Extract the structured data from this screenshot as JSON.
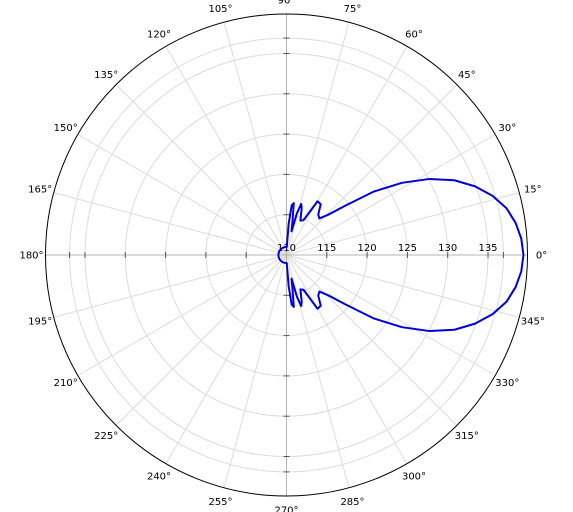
{
  "chart_data": {
    "type": "line",
    "coordinate_system": "polar",
    "title": "",
    "angle_unit": "deg",
    "angle_ticks": [
      {
        "value": 0,
        "label": "0°"
      },
      {
        "value": 15,
        "label": "15°"
      },
      {
        "value": 30,
        "label": "30°"
      },
      {
        "value": 45,
        "label": "45°"
      },
      {
        "value": 60,
        "label": "60°"
      },
      {
        "value": 75,
        "label": "75°"
      },
      {
        "value": 90,
        "label": "90°"
      },
      {
        "value": 105,
        "label": "105°"
      },
      {
        "value": 120,
        "label": "120°"
      },
      {
        "value": 135,
        "label": "135°"
      },
      {
        "value": 150,
        "label": "150°"
      },
      {
        "value": 165,
        "label": "165°"
      },
      {
        "value": 180,
        "label": "180°"
      },
      {
        "value": 195,
        "label": "195°"
      },
      {
        "value": 210,
        "label": "210°"
      },
      {
        "value": 225,
        "label": "225°"
      },
      {
        "value": 240,
        "label": "240°"
      },
      {
        "value": 255,
        "label": "255°"
      },
      {
        "value": 270,
        "label": "270°"
      },
      {
        "value": 285,
        "label": "285°"
      },
      {
        "value": 300,
        "label": "300°"
      },
      {
        "value": 315,
        "label": "315°"
      },
      {
        "value": 330,
        "label": "330°"
      },
      {
        "value": 345,
        "label": "345°"
      }
    ],
    "radial_ticks": [
      {
        "value": 110,
        "label": "110"
      },
      {
        "value": 115,
        "label": "115"
      },
      {
        "value": 120,
        "label": "120"
      },
      {
        "value": 125,
        "label": "125"
      },
      {
        "value": 130,
        "label": "130"
      },
      {
        "value": 135,
        "label": "135"
      }
    ],
    "r_range": [
      110,
      139.9
    ],
    "grid": true,
    "series": [
      {
        "color": "#0000dd",
        "theta": [
          0,
          4,
          8,
          12,
          16,
          20,
          24,
          28,
          32,
          36,
          40,
          44,
          48,
          52,
          56,
          60,
          64,
          68,
          72,
          74,
          76,
          78,
          80,
          82,
          84,
          86,
          88,
          90,
          92,
          94,
          96,
          98,
          100,
          102,
          104,
          106,
          108,
          110,
          112,
          114,
          116,
          118,
          120,
          124,
          128,
          132,
          136,
          140,
          144,
          148,
          152,
          156,
          160,
          164,
          168,
          172,
          176,
          180,
          184,
          188,
          192,
          196,
          200,
          204,
          208,
          212,
          216,
          220,
          224,
          228,
          232,
          236,
          240,
          242,
          244,
          246,
          248,
          250,
          252,
          254,
          256,
          258,
          260,
          262,
          264,
          266,
          268,
          270,
          272,
          274,
          276,
          278,
          280,
          282,
          284,
          286,
          288,
          292,
          296,
          300,
          304,
          308,
          312,
          316,
          320,
          324,
          328,
          332,
          336,
          340,
          344,
          348,
          352,
          356,
          360
        ],
        "r": [
          139.4,
          139.2,
          138.7,
          137.9,
          136.6,
          134.9,
          132.8,
          130.1,
          126.9,
          123.4,
          119.5,
          117.2,
          116.1,
          116.4,
          117.6,
          117.7,
          114.8,
          114.6,
          116.1,
          116.6,
          115.3,
          113.0,
          114.3,
          116.5,
          116.2,
          113.9,
          111.0,
          111.0,
          111.0,
          111.0,
          111.0,
          111.0,
          111.0,
          111.0,
          111.0,
          111.0,
          111.0,
          111.0,
          111.0,
          111.0,
          111.0,
          111.0,
          111.0,
          111.0,
          111.0,
          111.0,
          111.0,
          111.0,
          111.0,
          111.0,
          111.0,
          111.0,
          111.0,
          111.0,
          111.0,
          111.0,
          111.0,
          111.0,
          111.0,
          111.0,
          111.0,
          111.0,
          111.0,
          111.0,
          111.0,
          111.0,
          111.0,
          111.0,
          111.0,
          111.0,
          111.0,
          111.0,
          111.0,
          111.0,
          111.0,
          111.0,
          111.0,
          111.0,
          111.0,
          111.0,
          111.0,
          111.0,
          111.0,
          111.0,
          111.0,
          111.0,
          111.0,
          111.0,
          111.0,
          113.9,
          116.2,
          116.5,
          114.3,
          113.0,
          115.3,
          116.6,
          116.1,
          114.6,
          114.8,
          117.7,
          117.6,
          116.4,
          116.1,
          117.2,
          119.5,
          123.4,
          126.9,
          130.1,
          132.8,
          134.9,
          136.6,
          137.9,
          138.7,
          139.2,
          139.4
        ]
      }
    ]
  }
}
